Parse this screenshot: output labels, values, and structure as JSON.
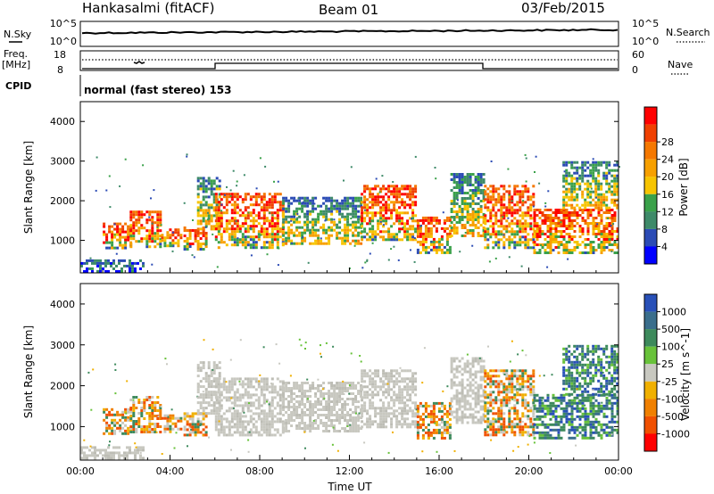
{
  "header": {
    "station": "Hankasalmi (fitACF)",
    "beam": "Beam 01",
    "date": "03/Feb/2015"
  },
  "top_panel": {
    "left_label_1": "N.Sky",
    "left_label_2": "Freq.",
    "left_label_3": "[MHz]",
    "left_label_4": "CPID",
    "right_label_1": "N.Search",
    "right_label_2": "Nave",
    "noise_ticks_left": [
      "10^5",
      "10^0"
    ],
    "noise_ticks_right": [
      "10^5",
      "10^0"
    ],
    "freq_ticks": [
      "18",
      "8"
    ],
    "nave_ticks": [
      "60",
      "0"
    ],
    "cpid_text": "normal (fast stereo) 153"
  },
  "chart_data": [
    {
      "type": "heatmap",
      "name": "power",
      "ylabel": "Slant Range [km]",
      "xlabel": "",
      "x_ticks": [
        "00:00",
        "04:00",
        "08:00",
        "12:00",
        "16:00",
        "20:00",
        "00:00"
      ],
      "y_ticks": [
        1000,
        2000,
        3000,
        4000
      ],
      "ylim": [
        180,
        4500
      ],
      "xlim_hours": [
        0,
        24
      ],
      "colorbar": {
        "label": "Power [dB]",
        "ticks": [
          "4",
          "8",
          "12",
          "16",
          "20",
          "24",
          "28"
        ],
        "colors": [
          "#0000ff",
          "#2b4bb5",
          "#3e8a69",
          "#3aa14a",
          "#f7c400",
          "#f7a000",
          "#f57800",
          "#f04000",
          "#ff0000"
        ]
      }
    },
    {
      "type": "heatmap",
      "name": "velocity",
      "ylabel": "Slant Range [km]",
      "xlabel": "Time UT",
      "x_ticks": [
        "00:00",
        "04:00",
        "08:00",
        "12:00",
        "16:00",
        "20:00",
        "00:00"
      ],
      "y_ticks": [
        1000,
        2000,
        3000,
        4000
      ],
      "ylim": [
        180,
        4500
      ],
      "xlim_hours": [
        0,
        24
      ],
      "colorbar": {
        "label": "Velocity [m s^-1]",
        "ticks": [
          "1000",
          "500",
          "100",
          "25",
          "-25",
          "-100",
          "-500",
          "-1000"
        ],
        "colors": [
          "#2850b8",
          "#3a6e8c",
          "#3d8a5c",
          "#68c23a",
          "#c8c8c0",
          "#f0b000",
          "#f08000",
          "#f05000",
          "#ff0000"
        ]
      }
    }
  ],
  "scatter_regions": [
    {
      "t0": 0.0,
      "t1": 2.8,
      "r0": 200,
      "r1": 520,
      "power": "low",
      "vel": "ground"
    },
    {
      "t0": 1.0,
      "t1": 2.2,
      "r0": 800,
      "r1": 1450,
      "power": "high",
      "vel": "neg"
    },
    {
      "t0": 2.2,
      "t1": 3.6,
      "r0": 850,
      "r1": 1750,
      "power": "high",
      "vel": "neg"
    },
    {
      "t0": 3.6,
      "t1": 4.5,
      "r0": 850,
      "r1": 1300,
      "power": "high",
      "vel": "neg"
    },
    {
      "t0": 4.6,
      "t1": 5.6,
      "r0": 800,
      "r1": 1350,
      "power": "high",
      "vel": "neg"
    },
    {
      "t0": 5.2,
      "t1": 6.2,
      "r0": 1300,
      "r1": 2600,
      "power": "mid",
      "vel": "ground"
    },
    {
      "t0": 6.0,
      "t1": 9.0,
      "r0": 800,
      "r1": 2200,
      "power": "high",
      "vel": "ground"
    },
    {
      "t0": 9.0,
      "t1": 12.5,
      "r0": 900,
      "r1": 2100,
      "power": "mid",
      "vel": "ground"
    },
    {
      "t0": 12.5,
      "t1": 15.0,
      "r0": 1000,
      "r1": 2400,
      "power": "high",
      "vel": "ground"
    },
    {
      "t0": 15.0,
      "t1": 16.5,
      "r0": 700,
      "r1": 1600,
      "power": "high",
      "vel": "neg"
    },
    {
      "t0": 16.5,
      "t1": 18.0,
      "r0": 1100,
      "r1": 2700,
      "power": "mid",
      "vel": "ground"
    },
    {
      "t0": 18.0,
      "t1": 20.2,
      "r0": 800,
      "r1": 2400,
      "power": "high",
      "vel": "neg"
    },
    {
      "t0": 20.2,
      "t1": 24.0,
      "r0": 700,
      "r1": 1800,
      "power": "high",
      "vel": "pos"
    },
    {
      "t0": 21.5,
      "t1": 24.0,
      "r0": 1800,
      "r1": 3000,
      "power": "mid",
      "vel": "pos"
    }
  ]
}
